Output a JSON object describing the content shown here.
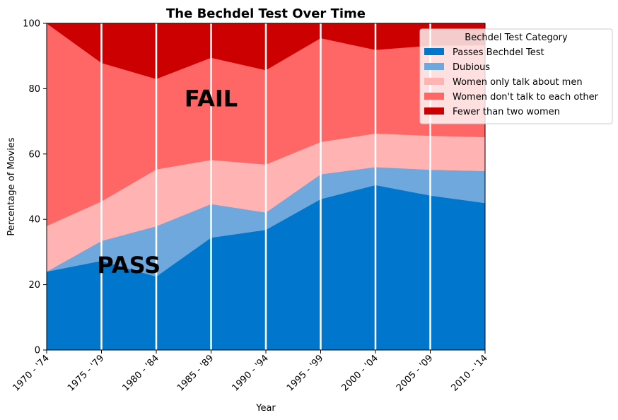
{
  "chart_data": {
    "type": "area",
    "stacked": true,
    "title": "The Bechdel Test Over Time",
    "xlabel": "Year",
    "ylabel": "Percentage of Movies",
    "ylim": [
      0,
      100
    ],
    "yticks": [
      0,
      20,
      40,
      60,
      80,
      100
    ],
    "categories": [
      "1970 - '74",
      "1975 - '79",
      "1980 - '84",
      "1985 - '89",
      "1990 - '94",
      "1995 - '99",
      "2000 - '04",
      "2005 - '09",
      "2010 - '14"
    ],
    "vertical_lines": true,
    "series": [
      {
        "name": "Passes Bechdel Test",
        "color": "#0077cc",
        "values": [
          24.0,
          27.3,
          22.5,
          34.4,
          36.8,
          46.2,
          50.5,
          47.3,
          45.0
        ]
      },
      {
        "name": "Dubious",
        "color": "#6fa8dc",
        "values": [
          0.0,
          6.1,
          15.4,
          10.3,
          5.3,
          7.6,
          5.5,
          7.9,
          9.8
        ]
      },
      {
        "name": "Women only talk about men",
        "color": "#ffb3b3",
        "values": [
          14.0,
          12.1,
          17.4,
          13.5,
          14.7,
          9.9,
          10.3,
          10.4,
          10.4
        ]
      },
      {
        "name": "Women don't talk to each other",
        "color": "#ff6666",
        "values": [
          62.0,
          42.4,
          27.7,
          31.3,
          28.9,
          31.8,
          25.6,
          27.6,
          28.1
        ]
      },
      {
        "name": "Fewer than two women",
        "color": "#cc0000",
        "values": [
          0.0,
          12.1,
          17.0,
          10.5,
          14.3,
          4.5,
          8.1,
          6.8,
          6.7
        ]
      }
    ],
    "annotations": [
      {
        "text": "PASS",
        "x": 1.5,
        "y": 26
      },
      {
        "text": "FAIL",
        "x": 3.0,
        "y": 77
      }
    ],
    "legend": {
      "title": "Bechdel Test Category",
      "placement": "top-right"
    }
  }
}
